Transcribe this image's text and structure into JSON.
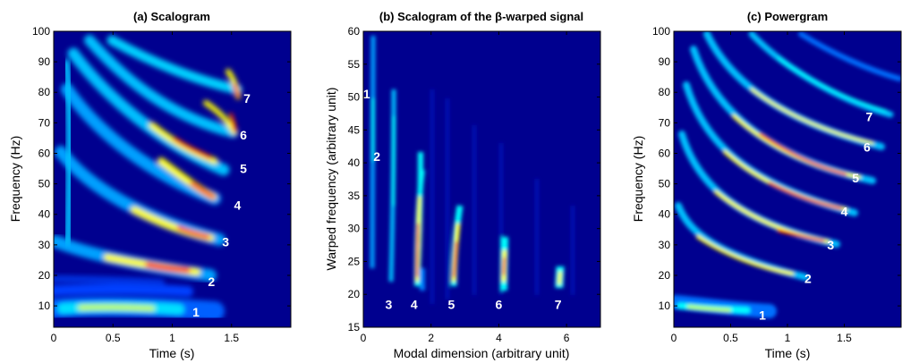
{
  "chart_data": [
    {
      "type": "heatmap",
      "title": "(a) Scalogram",
      "xlabel": "Time (s)",
      "ylabel": "Frequency (Hz)",
      "xlim": [
        0,
        2
      ],
      "ylim": [
        3,
        100
      ],
      "xticks": [
        "0",
        "0.5",
        "1",
        "1.5"
      ],
      "yticks": [
        "10",
        "20",
        "30",
        "40",
        "50",
        "60",
        "70",
        "80",
        "90",
        "100"
      ],
      "mode_labels": [
        {
          "text": "1",
          "x": 1.2,
          "y": 8
        },
        {
          "text": "2",
          "x": 1.33,
          "y": 18
        },
        {
          "text": "3",
          "x": 1.45,
          "y": 31
        },
        {
          "text": "4",
          "x": 1.55,
          "y": 43
        },
        {
          "text": "5",
          "x": 1.6,
          "y": 55
        },
        {
          "text": "6",
          "x": 1.6,
          "y": 66
        },
        {
          "text": "7",
          "x": 1.63,
          "y": 78
        }
      ]
    },
    {
      "type": "heatmap",
      "title": "(b) Scalogram of the β-warped signal",
      "xlabel": "Modal dimension (arbitrary unit)",
      "ylabel": "Warped frequency (arbitrary unit)",
      "xlim": [
        0,
        7
      ],
      "ylim": [
        15,
        60
      ],
      "xticks": [
        "0",
        "2",
        "4",
        "6"
      ],
      "yticks": [
        "15",
        "20",
        "25",
        "30",
        "35",
        "40",
        "45",
        "50",
        "55",
        "60"
      ],
      "mode_labels": [
        {
          "text": "1",
          "x": 0.1,
          "y": 50.5
        },
        {
          "text": "2",
          "x": 0.4,
          "y": 41
        },
        {
          "text": "3",
          "x": 0.75,
          "y": 18.5
        },
        {
          "text": "4",
          "x": 1.5,
          "y": 18.5
        },
        {
          "text": "5",
          "x": 2.6,
          "y": 18.5
        },
        {
          "text": "6",
          "x": 4.0,
          "y": 18.5
        },
        {
          "text": "7",
          "x": 5.75,
          "y": 18.5
        }
      ]
    },
    {
      "type": "heatmap",
      "title": "(c) Powergram",
      "xlabel": "Time (s)",
      "ylabel": "Frequency (Hz)",
      "xlim": [
        0,
        2
      ],
      "ylim": [
        3,
        100
      ],
      "xticks": [
        "0",
        "0.5",
        "1",
        "1.5"
      ],
      "yticks": [
        "10",
        "20",
        "30",
        "40",
        "50",
        "60",
        "70",
        "80",
        "90",
        "100"
      ],
      "mode_labels": [
        {
          "text": "1",
          "x": 0.78,
          "y": 7
        },
        {
          "text": "2",
          "x": 1.18,
          "y": 19
        },
        {
          "text": "3",
          "x": 1.38,
          "y": 30
        },
        {
          "text": "4",
          "x": 1.5,
          "y": 41
        },
        {
          "text": "5",
          "x": 1.6,
          "y": 52
        },
        {
          "text": "6",
          "x": 1.7,
          "y": 62
        },
        {
          "text": "7",
          "x": 1.72,
          "y": 72
        }
      ]
    }
  ],
  "colors": {
    "background": "#00008f",
    "colormap": [
      "#00008f",
      "#0000ff",
      "#00ffff",
      "#ffff00",
      "#ff0000",
      "#800000"
    ]
  }
}
